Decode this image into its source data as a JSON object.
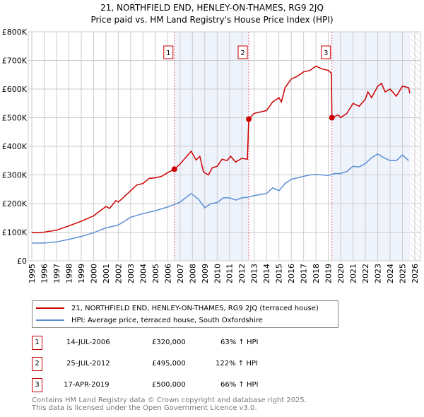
{
  "chart_data": {
    "type": "line",
    "title": "21, NORTHFIELD END, HENLEY-ON-THAMES, RG9 2JQ",
    "subtitle": "Price paid vs. HM Land Registry's House Price Index (HPI)",
    "xlim": [
      1995,
      2026
    ],
    "ylim": [
      0,
      800000
    ],
    "y_ticks": [
      {
        "v": 0,
        "label": "£0"
      },
      {
        "v": 100000,
        "label": "£100K"
      },
      {
        "v": 200000,
        "label": "£200K"
      },
      {
        "v": 300000,
        "label": "£300K"
      },
      {
        "v": 400000,
        "label": "£400K"
      },
      {
        "v": 500000,
        "label": "£500K"
      },
      {
        "v": 600000,
        "label": "£600K"
      },
      {
        "v": 700000,
        "label": "£700K"
      },
      {
        "v": 800000,
        "label": "£800K"
      }
    ],
    "x_ticks": [
      "1995",
      "1996",
      "1997",
      "1998",
      "1999",
      "2000",
      "2001",
      "2002",
      "2003",
      "2004",
      "2005",
      "2006",
      "2007",
      "2008",
      "2009",
      "2010",
      "2011",
      "2012",
      "2013",
      "2014",
      "2015",
      "2016",
      "2017",
      "2018",
      "2019",
      "2020",
      "2021",
      "2022",
      "2023",
      "2024",
      "2025",
      "2026"
    ],
    "grid": true,
    "series": [
      {
        "name": "21, NORTHFIELD END, HENLEY-ON-THAMES, RG9 2JQ (terraced house)",
        "color": "#cc0000",
        "points": [
          [
            1995,
            98
          ],
          [
            1996,
            100
          ],
          [
            1997,
            107
          ],
          [
            1998,
            122
          ],
          [
            1999,
            138
          ],
          [
            2000,
            157
          ],
          [
            2001,
            190
          ],
          [
            2001.3,
            183
          ],
          [
            2001.8,
            210
          ],
          [
            2002,
            205
          ],
          [
            2002.5,
            225
          ],
          [
            2003,
            245
          ],
          [
            2003.5,
            265
          ],
          [
            2004,
            270
          ],
          [
            2004.5,
            288
          ],
          [
            2005,
            290
          ],
          [
            2005.5,
            295
          ],
          [
            2006,
            308
          ],
          [
            2006.54,
            320
          ],
          [
            2007,
            338
          ],
          [
            2007.9,
            383
          ],
          [
            2008.3,
            352
          ],
          [
            2008.6,
            365
          ],
          [
            2008.9,
            310
          ],
          [
            2009.3,
            300
          ],
          [
            2009.6,
            325
          ],
          [
            2010,
            330
          ],
          [
            2010.4,
            355
          ],
          [
            2010.8,
            350
          ],
          [
            2011.1,
            365
          ],
          [
            2011.5,
            345
          ],
          [
            2012,
            358
          ],
          [
            2012.45,
            355
          ],
          [
            2012.56,
            495
          ],
          [
            2013,
            515
          ],
          [
            2014,
            525
          ],
          [
            2014.5,
            555
          ],
          [
            2015,
            570
          ],
          [
            2015.2,
            555
          ],
          [
            2015.5,
            605
          ],
          [
            2016,
            635
          ],
          [
            2016.5,
            645
          ],
          [
            2017,
            660
          ],
          [
            2017.5,
            665
          ],
          [
            2018,
            680
          ],
          [
            2018.5,
            670
          ],
          [
            2019,
            665
          ],
          [
            2019.25,
            655
          ],
          [
            2019.29,
            500
          ],
          [
            2019.8,
            510
          ],
          [
            2020,
            500
          ],
          [
            2020.5,
            515
          ],
          [
            2021,
            550
          ],
          [
            2021.5,
            540
          ],
          [
            2022,
            565
          ],
          [
            2022.2,
            590
          ],
          [
            2022.5,
            570
          ],
          [
            2023,
            610
          ],
          [
            2023.3,
            620
          ],
          [
            2023.6,
            590
          ],
          [
            2024,
            600
          ],
          [
            2024.5,
            575
          ],
          [
            2025,
            610
          ],
          [
            2025.5,
            605
          ],
          [
            2025.6,
            585
          ]
        ]
      },
      {
        "name": "HPI: Average price, terraced house, South Oxfordshire",
        "color": "#5b8fd4",
        "points": [
          [
            1995,
            62
          ],
          [
            1996,
            62
          ],
          [
            1997,
            66
          ],
          [
            1998,
            75
          ],
          [
            1999,
            85
          ],
          [
            2000,
            98
          ],
          [
            2001,
            115
          ],
          [
            2002,
            125
          ],
          [
            2003,
            152
          ],
          [
            2004,
            165
          ],
          [
            2005,
            175
          ],
          [
            2006,
            188
          ],
          [
            2006.5,
            196
          ],
          [
            2007,
            205
          ],
          [
            2007.9,
            235
          ],
          [
            2008.5,
            215
          ],
          [
            2009,
            185
          ],
          [
            2009.5,
            200
          ],
          [
            2010,
            203
          ],
          [
            2010.5,
            220
          ],
          [
            2011,
            220
          ],
          [
            2011.5,
            212
          ],
          [
            2012,
            220
          ],
          [
            2012.5,
            222
          ],
          [
            2013,
            228
          ],
          [
            2014,
            235
          ],
          [
            2014.5,
            255
          ],
          [
            2015,
            245
          ],
          [
            2015.5,
            270
          ],
          [
            2016,
            285
          ],
          [
            2016.5,
            290
          ],
          [
            2017,
            295
          ],
          [
            2017.5,
            300
          ],
          [
            2018,
            302
          ],
          [
            2018.5,
            300
          ],
          [
            2019,
            298
          ],
          [
            2019.5,
            305
          ],
          [
            2020,
            305
          ],
          [
            2020.5,
            312
          ],
          [
            2021,
            330
          ],
          [
            2021.5,
            328
          ],
          [
            2022,
            340
          ],
          [
            2022.5,
            360
          ],
          [
            2023,
            373
          ],
          [
            2023.5,
            360
          ],
          [
            2024,
            350
          ],
          [
            2024.5,
            350
          ],
          [
            2025,
            370
          ],
          [
            2025.5,
            350
          ]
        ]
      }
    ],
    "y_units_note": "points in £ thousands",
    "sales": [
      {
        "id": "1",
        "x": 2006.54,
        "y": 320
      },
      {
        "id": "2",
        "x": 2012.56,
        "y": 495
      },
      {
        "id": "3",
        "x": 2019.29,
        "y": 500
      }
    ],
    "shaded": [
      [
        2006.54,
        2012.56
      ],
      [
        2019.29,
        2025.6
      ]
    ]
  },
  "transactions": [
    {
      "id": "1",
      "date": "14-JUL-2006",
      "price": "£320,000",
      "hpi": "63% ↑ HPI"
    },
    {
      "id": "2",
      "date": "25-JUL-2012",
      "price": "£495,000",
      "hpi": "122% ↑ HPI"
    },
    {
      "id": "3",
      "date": "17-APR-2019",
      "price": "£500,000",
      "hpi": "66% ↑ HPI"
    }
  ],
  "footer": {
    "line1": "Contains HM Land Registry data © Crown copyright and database right 2025.",
    "line2": "This data is licensed under the Open Government Licence v3.0."
  }
}
